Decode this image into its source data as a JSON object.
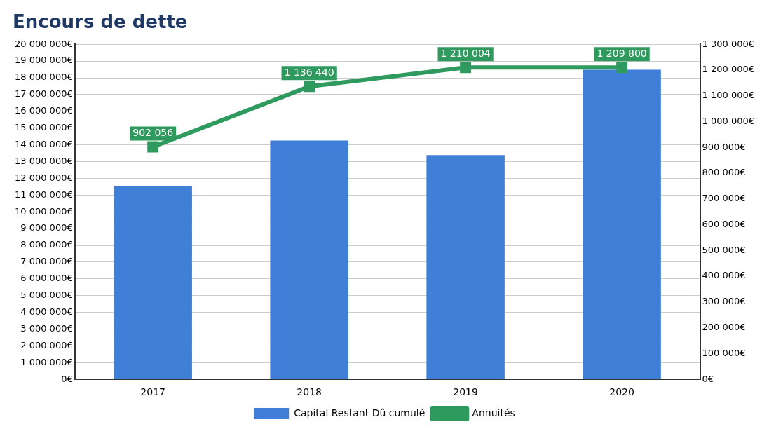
{
  "chart_data": {
    "type": "bar",
    "title": "Encours de dette",
    "categories": [
      "2017",
      "2018",
      "2019",
      "2020"
    ],
    "series": [
      {
        "name": "Capital Restant Dû cumulé",
        "color": "#3f7fd8",
        "values": [
          11520000,
          14260000,
          13390000,
          18480000
        ]
      },
      {
        "name": "Annuités",
        "type": "line",
        "axis": "y2",
        "color": "#2e9a5e",
        "values": [
          902056,
          1136440,
          1210004,
          1209800
        ],
        "value_labels": [
          "902 056",
          "1 136 440",
          "1 210 004",
          "1 209 800"
        ]
      }
    ],
    "ylim": [
      0,
      20000000
    ],
    "yticks": [
      {
        "value": 0,
        "label": "0€"
      },
      {
        "value": 1000000,
        "label": "1 000 000€"
      },
      {
        "value": 2000000,
        "label": "2 000 000€"
      },
      {
        "value": 3000000,
        "label": "3 000 000€"
      },
      {
        "value": 4000000,
        "label": "4 000 000€"
      },
      {
        "value": 5000000,
        "label": "5 000 000€"
      },
      {
        "value": 6000000,
        "label": "6 000 000€"
      },
      {
        "value": 7000000,
        "label": "7 000 000€"
      },
      {
        "value": 8000000,
        "label": "8 000 000€"
      },
      {
        "value": 9000000,
        "label": "9 000 000€"
      },
      {
        "value": 10000000,
        "label": "10 000 000€"
      },
      {
        "value": 11000000,
        "label": "11 000 000€"
      },
      {
        "value": 12000000,
        "label": "12 000 000€"
      },
      {
        "value": 13000000,
        "label": "13 000 000€"
      },
      {
        "value": 14000000,
        "label": "14 000 000€"
      },
      {
        "value": 15000000,
        "label": "15 000 000€"
      },
      {
        "value": 16000000,
        "label": "16 000 000€"
      },
      {
        "value": 17000000,
        "label": "17 000 000€"
      },
      {
        "value": 18000000,
        "label": "18 000 000€"
      },
      {
        "value": 19000000,
        "label": "19 000 000€"
      },
      {
        "value": 20000000,
        "label": "20 000 000€"
      }
    ],
    "y2lim": [
      0,
      1300000
    ],
    "y2ticks": [
      {
        "value": 0,
        "label": "0€"
      },
      {
        "value": 100000,
        "label": "100 000€"
      },
      {
        "value": 200000,
        "label": "200 000€"
      },
      {
        "value": 300000,
        "label": "300 000€"
      },
      {
        "value": 400000,
        "label": "400 000€"
      },
      {
        "value": 500000,
        "label": "500 000€"
      },
      {
        "value": 600000,
        "label": "600 000€"
      },
      {
        "value": 700000,
        "label": "700 000€"
      },
      {
        "value": 800000,
        "label": "800 000€"
      },
      {
        "value": 900000,
        "label": "900 000€"
      },
      {
        "value": 1000000,
        "label": "1 000 000€"
      },
      {
        "value": 1100000,
        "label": "1 100 000€"
      },
      {
        "value": 1200000,
        "label": "1 200 000€"
      },
      {
        "value": 1300000,
        "label": "1 300 000€"
      }
    ],
    "grid": "y",
    "legend": "bottom",
    "marker": "square",
    "line_style": "solid"
  }
}
